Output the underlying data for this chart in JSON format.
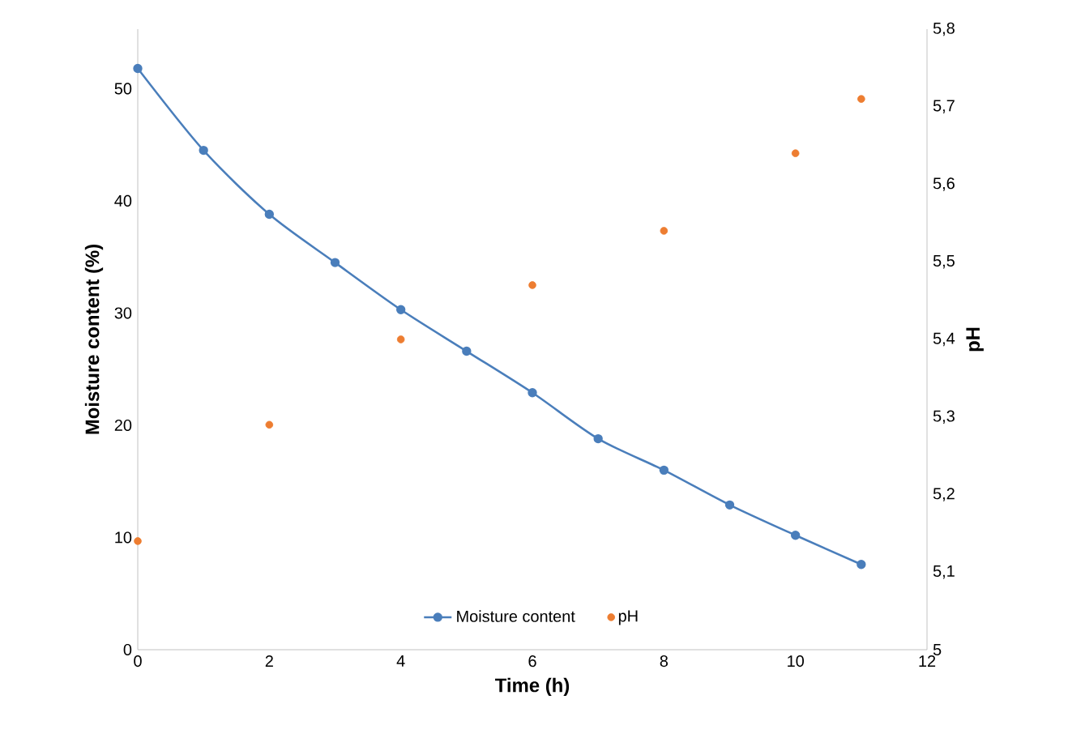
{
  "chart_data": {
    "type": "line",
    "xlabel": "Time (h)",
    "ylabel": "Moisture content (%)",
    "y2label": "pH",
    "x": [
      0,
      1,
      2,
      3,
      4,
      5,
      6,
      7,
      8,
      9,
      10,
      11
    ],
    "xlim": [
      0,
      12
    ],
    "xticks": [
      0,
      2,
      4,
      6,
      8,
      10,
      12
    ],
    "ylim": [
      0,
      55.3
    ],
    "yticks": [
      0,
      10,
      20,
      30,
      40,
      50
    ],
    "y2lim": [
      5,
      5.8
    ],
    "y2ticks": [
      5,
      {
        "value": 5.1,
        "label": "5,1"
      },
      {
        "value": 5.2,
        "label": "5,2"
      },
      {
        "value": 5.3,
        "label": "5,3"
      },
      {
        "value": 5.4,
        "label": "5,4"
      },
      {
        "value": 5.5,
        "label": "5,5"
      },
      {
        "value": 5.6,
        "label": "5,6"
      },
      {
        "value": 5.7,
        "label": "5,7"
      },
      {
        "value": 5.8,
        "label": "5,8"
      }
    ],
    "legend": "bottom",
    "grid": false,
    "series": [
      {
        "name": "Moisture content",
        "color": "#4a7ebb",
        "marker": "circle",
        "values": [
          51.8,
          44.5,
          38.8,
          34.5,
          30.3,
          26.6,
          22.9,
          18.8,
          16.0,
          12.9,
          10.2,
          7.6
        ]
      },
      {
        "name": "pH",
        "type": "scatter",
        "axis": "y2",
        "color": "#ed7d31",
        "marker": "circle",
        "x": [
          0,
          2,
          4,
          6,
          8,
          10,
          11
        ],
        "values": [
          5.14,
          5.29,
          5.4,
          5.47,
          5.54,
          5.64,
          5.71
        ]
      }
    ]
  }
}
